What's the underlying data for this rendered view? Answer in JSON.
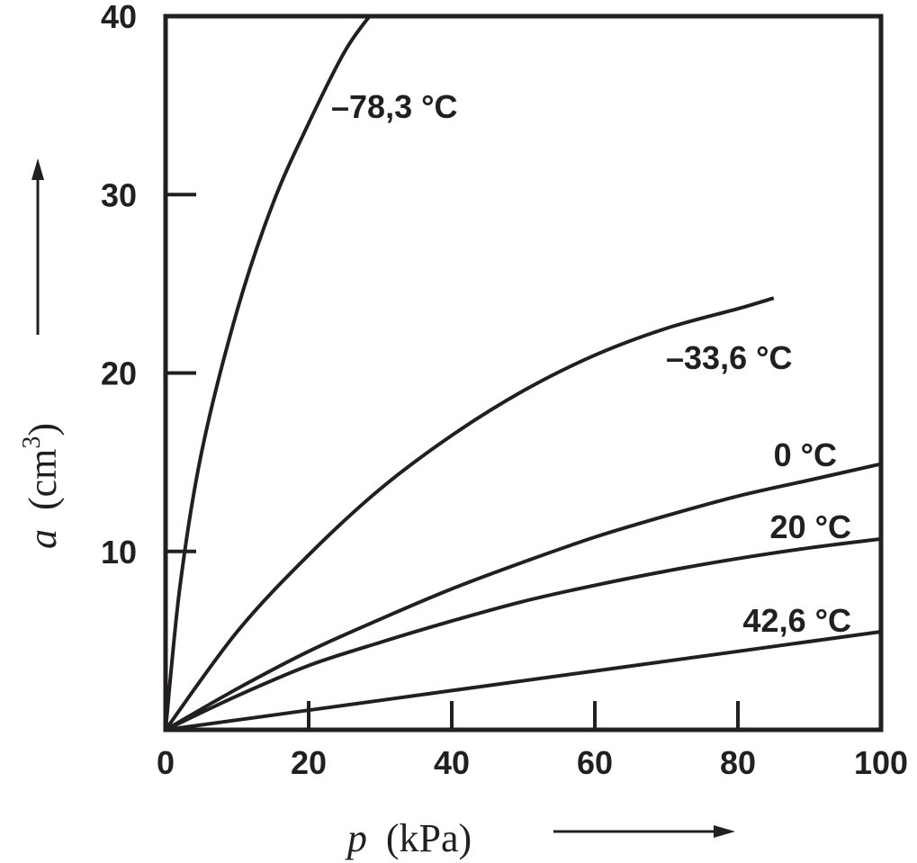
{
  "chart_data": {
    "type": "line",
    "title": "",
    "xlabel": {
      "symbol": "p",
      "unit": "(kPa)"
    },
    "ylabel": {
      "symbol": "a",
      "unit": "(cm",
      "unit_sup": "3",
      "unit_close": ")"
    },
    "xlim": [
      0,
      100
    ],
    "ylim": [
      0,
      40
    ],
    "x_ticks": [
      0,
      20,
      40,
      60,
      80,
      100
    ],
    "y_ticks": [
      10,
      20,
      30,
      40
    ],
    "x_tick_labels": [
      "0",
      "20",
      "40",
      "60",
      "80",
      "100"
    ],
    "y_tick_labels": [
      "10",
      "20",
      "30",
      "40"
    ],
    "grid": false,
    "legend": "none",
    "series": [
      {
        "name": "–78,3 °C",
        "x": [
          0,
          2,
          5,
          10,
          15,
          20,
          25,
          28.5
        ],
        "y": [
          0,
          8,
          15.5,
          23.5,
          29.5,
          34,
          38,
          40
        ]
      },
      {
        "name": "–33,6 °C",
        "x": [
          0,
          10,
          20,
          30,
          40,
          50,
          60,
          70,
          80,
          85
        ],
        "y": [
          0,
          5.5,
          9.8,
          13.5,
          16.5,
          19,
          21,
          22.5,
          23.6,
          24.2
        ]
      },
      {
        "name": "0 °C",
        "x": [
          0,
          10,
          20,
          30,
          40,
          50,
          60,
          70,
          80,
          90,
          100
        ],
        "y": [
          0,
          2.3,
          4.4,
          6.2,
          7.9,
          9.4,
          10.8,
          12,
          13.1,
          14,
          14.9
        ]
      },
      {
        "name": "20 °C",
        "x": [
          0,
          10,
          20,
          30,
          40,
          50,
          60,
          70,
          80,
          90,
          100
        ],
        "y": [
          0,
          1.9,
          3.6,
          4.9,
          6.1,
          7.2,
          8.1,
          8.9,
          9.6,
          10.2,
          10.7
        ]
      },
      {
        "name": "42,6 °C",
        "x": [
          0,
          20,
          40,
          60,
          80,
          100
        ],
        "y": [
          0,
          1.1,
          2.2,
          3.3,
          4.4,
          5.5
        ]
      }
    ]
  }
}
